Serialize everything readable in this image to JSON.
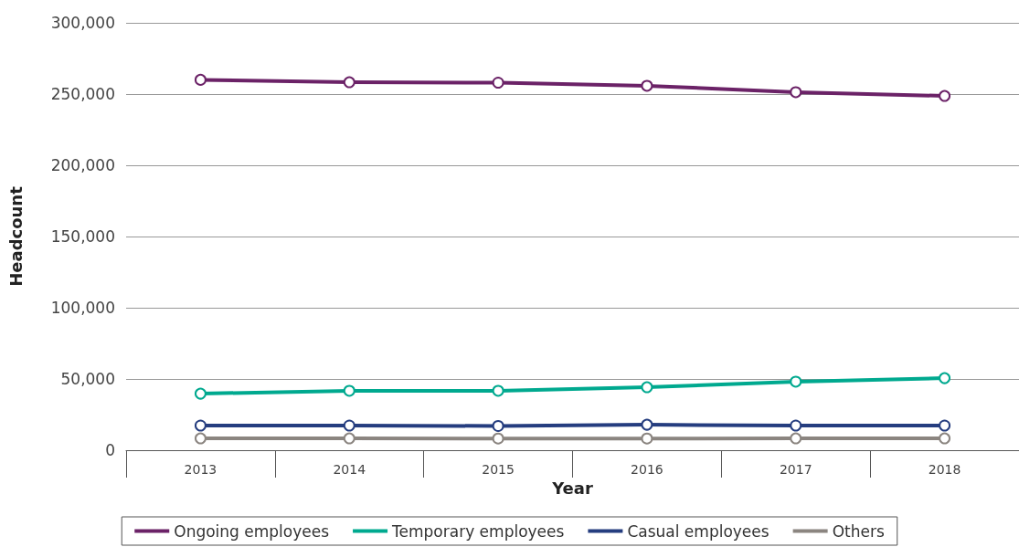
{
  "chart_data": {
    "type": "line",
    "xlabel": "Year",
    "ylabel": "Headcount",
    "categories": [
      "2013",
      "2014",
      "2015",
      "2016",
      "2017",
      "2018"
    ],
    "series": [
      {
        "name": "Ongoing employees",
        "color": "#6b2267",
        "values": [
          260000,
          258300,
          258000,
          255800,
          251300,
          248700
        ]
      },
      {
        "name": "Temporary employees",
        "color": "#00a98f",
        "values": [
          39700,
          41700,
          41700,
          44200,
          48100,
          50600
        ]
      },
      {
        "name": "Casual employees",
        "color": "#253d7f",
        "values": [
          17300,
          17300,
          17000,
          17900,
          17300,
          17300
        ]
      },
      {
        "name": "Others",
        "color": "#8b8580",
        "values": [
          8300,
          8300,
          8200,
          8200,
          8300,
          8300
        ]
      }
    ],
    "ylim": [
      0,
      300000
    ],
    "yticks": [
      0,
      {
        "value": 50000,
        "label": "50,000"
      },
      {
        "value": 100000,
        "label": "100,000"
      },
      {
        "value": 150000,
        "label": "150,000"
      },
      {
        "value": 200000,
        "label": "200,000"
      },
      {
        "value": 250000,
        "label": "250,000"
      },
      {
        "value": 300000,
        "label": "300,000"
      }
    ],
    "grid": "y",
    "legend": "bottom",
    "marker": "circle",
    "line_style": "solid"
  }
}
